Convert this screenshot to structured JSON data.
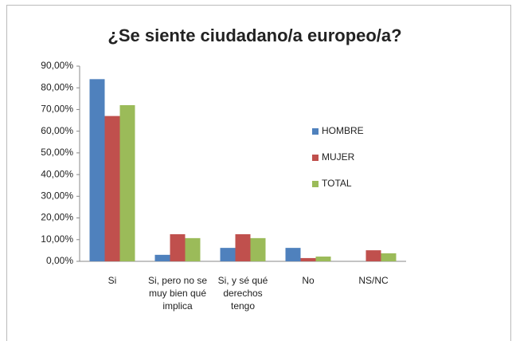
{
  "chart_data": {
    "type": "bar",
    "title": "¿Se siente ciudadano/a europeo/a?",
    "categories": [
      "Si",
      "Si, pero no se muy bien qué implica",
      "Si, y sé qué derechos tengo",
      "No",
      "NS/NC"
    ],
    "series": [
      {
        "name": "HOMBRE",
        "color": "#4f81bd",
        "values": [
          84,
          3,
          6.2,
          6.2,
          0
        ]
      },
      {
        "name": "MUJER",
        "color": "#c0504d",
        "values": [
          67,
          12.5,
          12.5,
          1.5,
          5.1
        ]
      },
      {
        "name": "TOTAL",
        "color": "#9bbb59",
        "values": [
          72,
          10.7,
          10.7,
          2.2,
          3.7
        ]
      }
    ],
    "ylim": [
      0,
      90
    ],
    "yticks": [
      {
        "value": 0,
        "label": "0,00%"
      },
      {
        "value": 10,
        "label": "10,00%"
      },
      {
        "value": 20,
        "label": "20,00%"
      },
      {
        "value": 30,
        "label": "30,00%"
      },
      {
        "value": 40,
        "label": "40,00%"
      },
      {
        "value": 50,
        "label": "50,00%"
      },
      {
        "value": 60,
        "label": "60,00%"
      },
      {
        "value": 70,
        "label": "70,00%"
      },
      {
        "value": 80,
        "label": "80,00%"
      },
      {
        "value": 90,
        "label": "90,00%"
      }
    ],
    "legend": "right"
  }
}
